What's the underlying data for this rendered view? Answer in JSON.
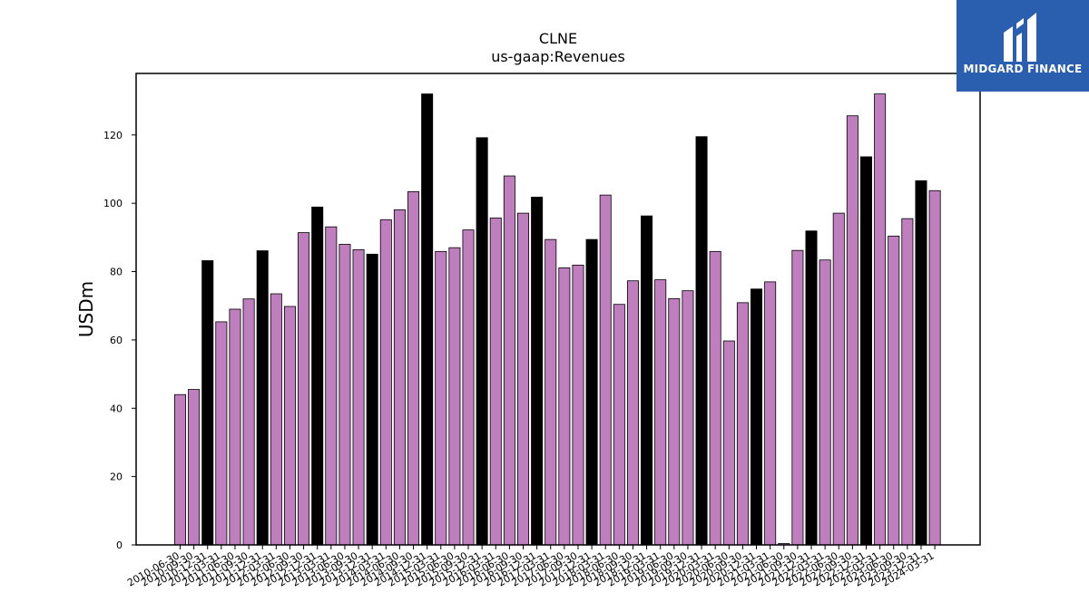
{
  "brand": {
    "name": "MIDGARD FINANCE",
    "bg_color": "#2a5fb0"
  },
  "chart_data": {
    "type": "bar",
    "title": "CLNE",
    "subtitle": "us-gaap:Revenues",
    "xlabel": "",
    "ylabel": "USDm",
    "ylim": [
      0,
      138
    ],
    "yticks": [
      0,
      20,
      40,
      60,
      80,
      100,
      120
    ],
    "grid": false,
    "colors": {
      "quarter": "#bf7fbf",
      "year_end": "#000000",
      "edge": "#000000"
    },
    "categories": [
      "2010-06-30",
      "2010-09-30",
      "2010-12-31",
      "2011-03-31",
      "2011-06-30",
      "2011-09-30",
      "2011-12-31",
      "2012-03-31",
      "2012-06-30",
      "2012-09-30",
      "2012-12-31",
      "2013-03-31",
      "2013-06-30",
      "2013-09-30",
      "2013-12-31",
      "2014-03-31",
      "2014-06-30",
      "2014-09-30",
      "2014-12-31",
      "2015-03-31",
      "2015-06-30",
      "2015-09-30",
      "2015-12-31",
      "2016-03-31",
      "2016-06-30",
      "2016-09-30",
      "2016-12-31",
      "2017-03-31",
      "2017-06-30",
      "2017-09-30",
      "2017-12-31",
      "2018-03-31",
      "2018-06-30",
      "2018-09-30",
      "2018-12-31",
      "2019-03-31",
      "2019-06-30",
      "2019-09-30",
      "2019-12-31",
      "2020-03-31",
      "2020-06-30",
      "2020-09-30",
      "2020-12-31",
      "2021-03-31",
      "2021-06-30",
      "2021-09-30",
      "2021-12-31",
      "2022-03-31",
      "2022-06-30",
      "2022-09-30",
      "2022-12-31",
      "2023-03-31",
      "2023-06-30",
      "2023-09-30",
      "2023-12-31",
      "2024-03-31"
    ],
    "values": [
      44.0,
      45.5,
      83.2,
      65.3,
      69.0,
      72.0,
      86.1,
      73.5,
      69.8,
      91.4,
      98.9,
      93.1,
      88.0,
      86.4,
      85.1,
      95.2,
      98.1,
      103.4,
      132.0,
      85.9,
      87.0,
      92.2,
      119.2,
      95.7,
      108.0,
      97.1,
      101.8,
      89.4,
      81.1,
      81.9,
      89.4,
      102.4,
      70.4,
      77.3,
      96.3,
      77.6,
      72.1,
      74.4,
      119.5,
      85.9,
      59.7,
      70.9,
      74.9,
      77.0,
      0.4,
      86.2,
      91.9,
      83.4,
      97.1,
      125.6,
      113.6,
      132.0,
      90.4,
      95.5,
      106.6,
      103.7
    ],
    "year_end": [
      false,
      false,
      true,
      false,
      false,
      false,
      true,
      false,
      false,
      false,
      true,
      false,
      false,
      false,
      true,
      false,
      false,
      false,
      true,
      false,
      false,
      false,
      true,
      false,
      false,
      false,
      true,
      false,
      false,
      false,
      true,
      false,
      false,
      false,
      true,
      false,
      false,
      false,
      true,
      false,
      false,
      false,
      true,
      false,
      false,
      false,
      true,
      false,
      false,
      false,
      true,
      false,
      false,
      false,
      true,
      false
    ]
  }
}
